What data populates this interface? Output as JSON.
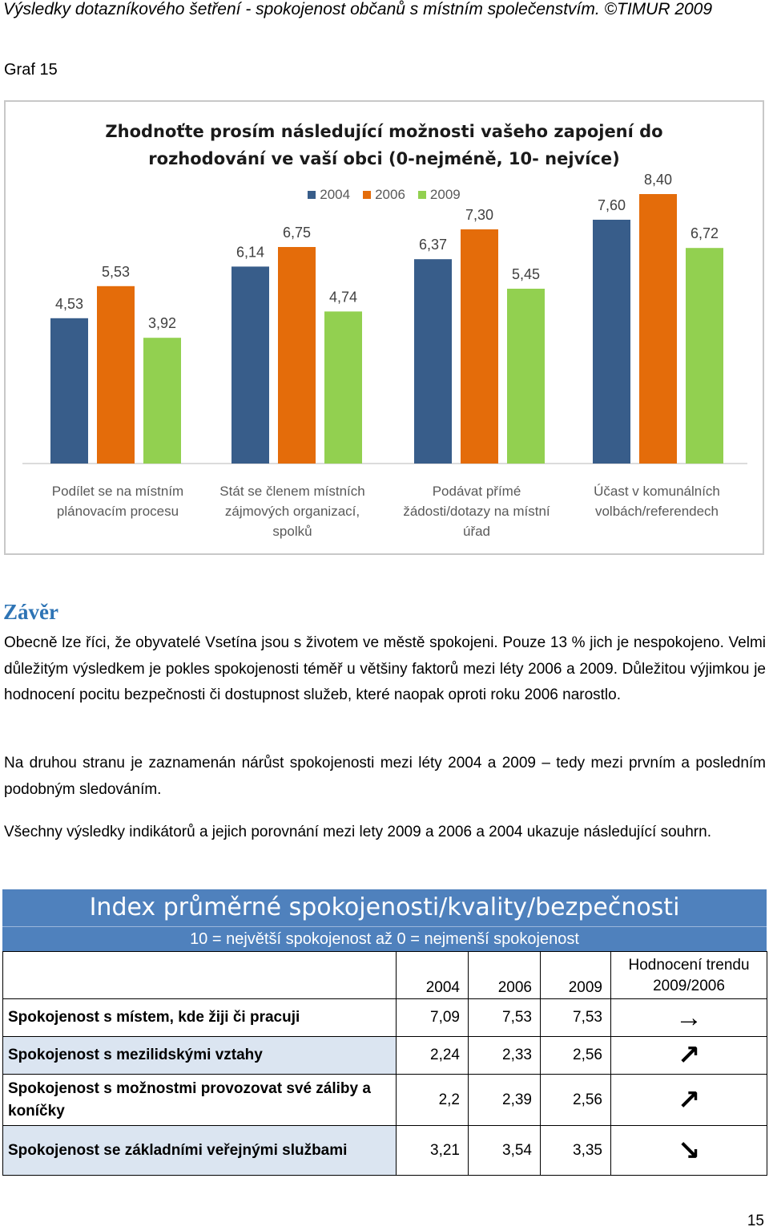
{
  "header": {
    "title": "Výsledky dotazníkového šetření - spokojenost občanů s místním společenstvím. ©TIMUR 2009"
  },
  "graph_label": "Graf 15",
  "chart_data": {
    "type": "bar",
    "title_lines": [
      "Zhodnoťte prosím následující možnosti vašeho zapojení do",
      "rozhodování ve vaší obci (0-nejméně, 10- nejvíce)"
    ],
    "categories": [
      [
        "Podílet se na místním",
        "plánovacím procesu"
      ],
      [
        "Stát se členem místních",
        "zájmových organizací,",
        "spolků"
      ],
      [
        "Podávat přímé",
        "žádosti/dotazy na místní",
        "úřad"
      ],
      [
        "Účast v komunálních",
        "volbách/referendech"
      ]
    ],
    "series": [
      {
        "name": "2004",
        "color": "#385d8a",
        "values": [
          4.53,
          6.14,
          6.37,
          7.6
        ],
        "labels": [
          "4,53",
          "6,14",
          "6,37",
          "7,60"
        ]
      },
      {
        "name": "2006",
        "color": "#e46c0a",
        "values": [
          5.53,
          6.75,
          7.3,
          8.4
        ],
        "labels": [
          "5,53",
          "6,75",
          "7,30",
          "8,40"
        ]
      },
      {
        "name": "2009",
        "color": "#92d050",
        "values": [
          3.92,
          4.74,
          5.45,
          6.72
        ],
        "labels": [
          "3,92",
          "4,74",
          "5,45",
          "6,72"
        ]
      }
    ],
    "ylim": [
      0,
      10
    ],
    "legend": "top-center",
    "grid": false
  },
  "section": {
    "title": "Závěr",
    "p1": "Obecně lze říci, že obyvatelé Vsetína jsou s životem ve městě spokojeni. Pouze 13 % jich je nespokojeno. Velmi důležitým výsledkem je pokles spokojenosti téměř u většiny faktorů mezi léty 2006 a 2009. Důležitou výjimkou je hodnocení pocitu bezpečnosti či dostupnost služeb, které naopak oproti roku 2006 narostlo.",
    "p2": "Na druhou stranu je zaznamenán nárůst spokojenosti mezi léty 2004 a 2009 – tedy mezi prvním a posledním podobným sledováním.",
    "p3": "Všechny výsledky indikátorů a jejich porovnání mezi lety 2009 a 2006 a 2004 ukazuje následující souhrn."
  },
  "table": {
    "title": "Index průměrné spokojenosti/kvality/bezpečnosti",
    "subtitle": "10 = největší spokojenost až 0 = nejmenší spokojenost",
    "col_2004": "2004",
    "col_2006": "2006",
    "col_2009": "2009",
    "col_trend_1": "Hodnocení trendu",
    "col_trend_2": "2009/2006",
    "rows": [
      {
        "label": "Spokojenost s místem, kde žiji či pracuji",
        "v2004": "7,09",
        "v2006": "7,53",
        "v2009": "7,53",
        "trend": "→"
      },
      {
        "label": "Spokojenost s mezilidskými vztahy",
        "v2004": "2,24",
        "v2006": "2,33",
        "v2009": "2,56",
        "trend": "↗"
      },
      {
        "label": "Spokojenost s možnostmi provozovat své záliby a koníčky",
        "v2004": "2,2",
        "v2006": "2,39",
        "v2009": "2,56",
        "trend": "↗"
      },
      {
        "label": "Spokojenost se základními veřejnými službami",
        "v2004": "3,21",
        "v2006": "3,54",
        "v2009": "3,35",
        "trend": "↘"
      }
    ]
  },
  "page_number": "15"
}
